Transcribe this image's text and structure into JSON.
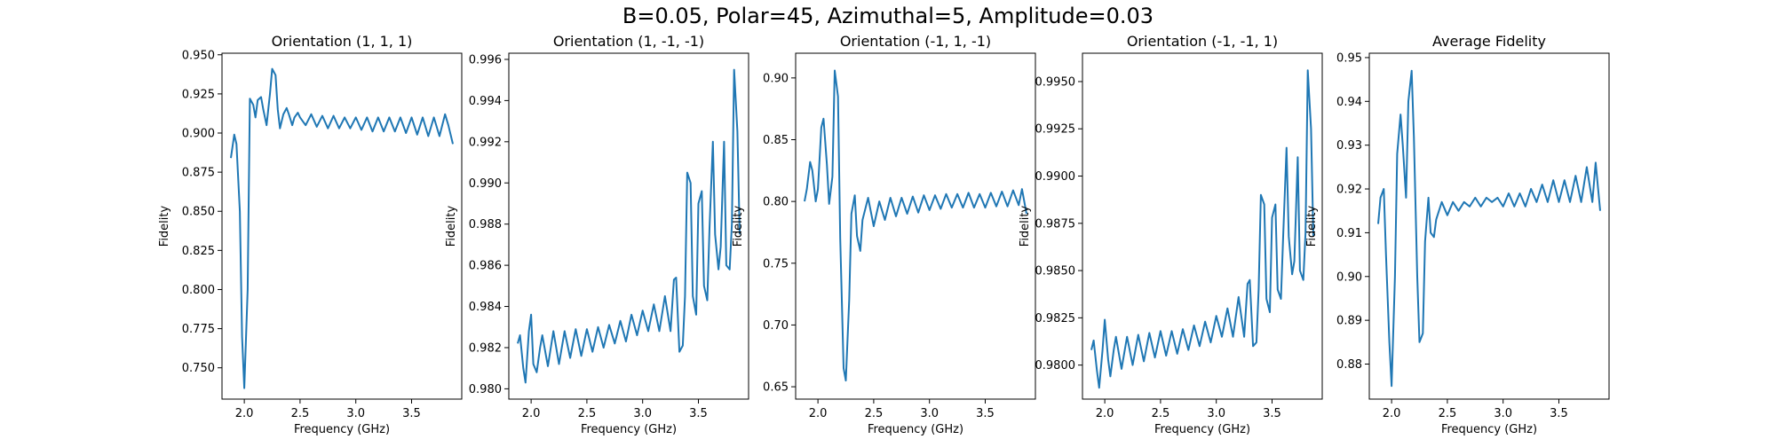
{
  "figure": {
    "suptitle": "B=0.05, Polar=45, Azimuthal=5, Amplitude=0.03"
  },
  "chart_data": [
    {
      "type": "line",
      "title": "Orientation (1, 1, 1)",
      "xlabel": "Frequency (GHz)",
      "ylabel": "Fidelity",
      "xlim": [
        1.8,
        3.95
      ],
      "ylim": [
        0.73,
        0.951
      ],
      "xticks": [
        2.0,
        2.5,
        3.0,
        3.5
      ],
      "xtick_labels": [
        "2.0",
        "2.5",
        "3.0",
        "3.5"
      ],
      "yticks": [
        0.75,
        0.775,
        0.8,
        0.825,
        0.85,
        0.875,
        0.9,
        0.925,
        0.95
      ],
      "ytick_labels": [
        "0.750",
        "0.775",
        "0.800",
        "0.825",
        "0.850",
        "0.875",
        "0.900",
        "0.925",
        "0.950"
      ],
      "series": [
        {
          "color": "#1f77b4",
          "x": [
            1.88,
            1.91,
            1.93,
            1.96,
            1.98,
            2.0,
            2.03,
            2.05,
            2.08,
            2.1,
            2.12,
            2.15,
            2.17,
            2.2,
            2.23,
            2.25,
            2.28,
            2.3,
            2.32,
            2.35,
            2.38,
            2.4,
            2.43,
            2.45,
            2.48,
            2.5,
            2.55,
            2.6,
            2.65,
            2.7,
            2.75,
            2.8,
            2.85,
            2.9,
            2.95,
            3.0,
            3.05,
            3.1,
            3.15,
            3.2,
            3.25,
            3.3,
            3.35,
            3.4,
            3.45,
            3.5,
            3.55,
            3.6,
            3.65,
            3.7,
            3.75,
            3.8,
            3.83,
            3.87
          ],
          "y": [
            0.884,
            0.899,
            0.893,
            0.85,
            0.77,
            0.737,
            0.8,
            0.922,
            0.918,
            0.91,
            0.921,
            0.923,
            0.915,
            0.905,
            0.925,
            0.941,
            0.937,
            0.915,
            0.903,
            0.912,
            0.916,
            0.912,
            0.905,
            0.91,
            0.913,
            0.91,
            0.905,
            0.912,
            0.904,
            0.911,
            0.903,
            0.911,
            0.903,
            0.91,
            0.903,
            0.91,
            0.902,
            0.91,
            0.901,
            0.91,
            0.901,
            0.91,
            0.901,
            0.91,
            0.9,
            0.91,
            0.899,
            0.91,
            0.898,
            0.91,
            0.898,
            0.912,
            0.905,
            0.893
          ]
        }
      ]
    },
    {
      "type": "line",
      "title": "Orientation (1, -1, -1)",
      "xlabel": "Frequency (GHz)",
      "ylabel": "Fidelity",
      "xlim": [
        1.8,
        3.95
      ],
      "ylim": [
        0.9795,
        0.9963
      ],
      "xticks": [
        2.0,
        2.5,
        3.0,
        3.5
      ],
      "xtick_labels": [
        "2.0",
        "2.5",
        "3.0",
        "3.5"
      ],
      "yticks": [
        0.98,
        0.982,
        0.984,
        0.986,
        0.988,
        0.99,
        0.992,
        0.994,
        0.996
      ],
      "ytick_labels": [
        "0.980",
        "0.982",
        "0.984",
        "0.986",
        "0.988",
        "0.990",
        "0.992",
        "0.994",
        "0.996"
      ],
      "series": [
        {
          "color": "#1f77b4",
          "x": [
            1.88,
            1.9,
            1.93,
            1.95,
            1.98,
            2.0,
            2.02,
            2.05,
            2.08,
            2.1,
            2.15,
            2.2,
            2.25,
            2.3,
            2.35,
            2.4,
            2.45,
            2.5,
            2.55,
            2.6,
            2.65,
            2.7,
            2.75,
            2.8,
            2.85,
            2.9,
            2.95,
            3.0,
            3.05,
            3.1,
            3.15,
            3.2,
            3.25,
            3.28,
            3.3,
            3.33,
            3.36,
            3.38,
            3.4,
            3.43,
            3.45,
            3.48,
            3.5,
            3.53,
            3.55,
            3.58,
            3.6,
            3.63,
            3.65,
            3.68,
            3.7,
            3.73,
            3.75,
            3.78,
            3.8,
            3.82,
            3.85,
            3.87
          ],
          "y": [
            0.9822,
            0.9826,
            0.981,
            0.9803,
            0.9828,
            0.9836,
            0.9812,
            0.9808,
            0.982,
            0.9826,
            0.9811,
            0.9828,
            0.9812,
            0.9828,
            0.9815,
            0.9829,
            0.9816,
            0.9829,
            0.9818,
            0.983,
            0.982,
            0.9831,
            0.9822,
            0.9833,
            0.9823,
            0.9836,
            0.9826,
            0.9838,
            0.9828,
            0.9841,
            0.9828,
            0.9845,
            0.9828,
            0.9853,
            0.9854,
            0.9818,
            0.9821,
            0.9845,
            0.9905,
            0.99,
            0.9845,
            0.9836,
            0.989,
            0.9896,
            0.985,
            0.9843,
            0.9878,
            0.992,
            0.9875,
            0.9858,
            0.9869,
            0.992,
            0.986,
            0.9858,
            0.988,
            0.9955,
            0.9925,
            0.9875
          ]
        }
      ]
    },
    {
      "type": "line",
      "title": "Orientation (-1, 1, -1)",
      "xlabel": "Frequency (GHz)",
      "ylabel": "Fidelity",
      "xlim": [
        1.8,
        3.95
      ],
      "ylim": [
        0.64,
        0.92
      ],
      "xticks": [
        2.0,
        2.5,
        3.0,
        3.5
      ],
      "xtick_labels": [
        "2.0",
        "2.5",
        "3.0",
        "3.5"
      ],
      "yticks": [
        0.65,
        0.7,
        0.75,
        0.8,
        0.85,
        0.9
      ],
      "ytick_labels": [
        "0.65",
        "0.70",
        "0.75",
        "0.80",
        "0.85",
        "0.90"
      ],
      "series": [
        {
          "color": "#1f77b4",
          "x": [
            1.88,
            1.9,
            1.93,
            1.95,
            1.98,
            2.0,
            2.03,
            2.05,
            2.08,
            2.1,
            2.13,
            2.15,
            2.18,
            2.2,
            2.23,
            2.25,
            2.28,
            2.3,
            2.33,
            2.35,
            2.38,
            2.4,
            2.45,
            2.5,
            2.55,
            2.6,
            2.65,
            2.7,
            2.75,
            2.8,
            2.85,
            2.9,
            2.95,
            3.0,
            3.05,
            3.1,
            3.15,
            3.2,
            3.25,
            3.3,
            3.35,
            3.4,
            3.45,
            3.5,
            3.55,
            3.6,
            3.65,
            3.7,
            3.75,
            3.8,
            3.83,
            3.87
          ],
          "y": [
            0.8,
            0.81,
            0.832,
            0.825,
            0.8,
            0.81,
            0.86,
            0.867,
            0.83,
            0.798,
            0.82,
            0.906,
            0.885,
            0.77,
            0.665,
            0.655,
            0.72,
            0.79,
            0.805,
            0.772,
            0.76,
            0.785,
            0.803,
            0.78,
            0.8,
            0.785,
            0.803,
            0.788,
            0.803,
            0.79,
            0.804,
            0.791,
            0.805,
            0.793,
            0.805,
            0.794,
            0.806,
            0.795,
            0.806,
            0.795,
            0.807,
            0.795,
            0.806,
            0.795,
            0.807,
            0.796,
            0.808,
            0.796,
            0.809,
            0.797,
            0.81,
            0.79
          ]
        }
      ]
    },
    {
      "type": "line",
      "title": "Orientation (-1, -1, 1)",
      "xlabel": "Frequency (GHz)",
      "ylabel": "Fidelity",
      "xlim": [
        1.8,
        3.95
      ],
      "ylim": [
        0.9782,
        0.9965
      ],
      "xticks": [
        2.0,
        2.5,
        3.0,
        3.5
      ],
      "xtick_labels": [
        "2.0",
        "2.5",
        "3.0",
        "3.5"
      ],
      "yticks": [
        0.98,
        0.9825,
        0.985,
        0.9875,
        0.99,
        0.9925,
        0.995
      ],
      "ytick_labels": [
        "0.9800",
        "0.9825",
        "0.9850",
        "0.9875",
        "0.9900",
        "0.9925",
        "0.9950"
      ],
      "series": [
        {
          "color": "#1f77b4",
          "x": [
            1.88,
            1.9,
            1.93,
            1.95,
            1.98,
            2.0,
            2.03,
            2.05,
            2.08,
            2.1,
            2.15,
            2.2,
            2.25,
            2.3,
            2.35,
            2.4,
            2.45,
            2.5,
            2.55,
            2.6,
            2.65,
            2.7,
            2.75,
            2.8,
            2.85,
            2.9,
            2.95,
            3.0,
            3.05,
            3.1,
            3.15,
            3.2,
            3.25,
            3.28,
            3.3,
            3.33,
            3.36,
            3.38,
            3.4,
            3.43,
            3.45,
            3.48,
            3.5,
            3.53,
            3.55,
            3.58,
            3.6,
            3.63,
            3.65,
            3.68,
            3.7,
            3.73,
            3.75,
            3.78,
            3.8,
            3.82,
            3.85,
            3.87
          ],
          "y": [
            0.9808,
            0.9813,
            0.9797,
            0.9788,
            0.9808,
            0.9824,
            0.9803,
            0.9794,
            0.9808,
            0.9815,
            0.9798,
            0.9815,
            0.98,
            0.9816,
            0.9802,
            0.9817,
            0.9804,
            0.9818,
            0.9805,
            0.9818,
            0.9806,
            0.9819,
            0.9808,
            0.9821,
            0.981,
            0.9823,
            0.9812,
            0.9826,
            0.9815,
            0.983,
            0.9815,
            0.9836,
            0.9815,
            0.9843,
            0.9845,
            0.981,
            0.9812,
            0.984,
            0.989,
            0.9885,
            0.9835,
            0.9828,
            0.9878,
            0.9885,
            0.984,
            0.9835,
            0.9868,
            0.9915,
            0.9868,
            0.9848,
            0.9855,
            0.991,
            0.985,
            0.9845,
            0.987,
            0.9956,
            0.9925,
            0.9868
          ]
        }
      ]
    },
    {
      "type": "line",
      "title": "Average Fidelity",
      "xlabel": "Frequency (GHz)",
      "ylabel": "Fidelity",
      "xlim": [
        1.8,
        3.95
      ],
      "ylim": [
        0.872,
        0.951
      ],
      "xticks": [
        2.0,
        2.5,
        3.0,
        3.5
      ],
      "xtick_labels": [
        "2.0",
        "2.5",
        "3.0",
        "3.5"
      ],
      "yticks": [
        0.88,
        0.89,
        0.9,
        0.91,
        0.92,
        0.93,
        0.94,
        0.95
      ],
      "ytick_labels": [
        "0.88",
        "0.89",
        "0.90",
        "0.91",
        "0.92",
        "0.93",
        "0.94",
        "0.95"
      ],
      "series": [
        {
          "color": "#1f77b4",
          "x": [
            1.88,
            1.9,
            1.93,
            1.95,
            1.98,
            2.0,
            2.03,
            2.05,
            2.08,
            2.1,
            2.13,
            2.15,
            2.18,
            2.2,
            2.23,
            2.25,
            2.28,
            2.3,
            2.33,
            2.35,
            2.38,
            2.4,
            2.45,
            2.5,
            2.55,
            2.6,
            2.65,
            2.7,
            2.75,
            2.8,
            2.85,
            2.9,
            2.95,
            3.0,
            3.05,
            3.1,
            3.15,
            3.2,
            3.25,
            3.3,
            3.35,
            3.4,
            3.45,
            3.5,
            3.55,
            3.6,
            3.65,
            3.7,
            3.75,
            3.8,
            3.83,
            3.87
          ],
          "y": [
            0.912,
            0.918,
            0.92,
            0.905,
            0.885,
            0.875,
            0.9,
            0.928,
            0.937,
            0.93,
            0.918,
            0.94,
            0.947,
            0.932,
            0.9,
            0.885,
            0.887,
            0.908,
            0.918,
            0.91,
            0.909,
            0.913,
            0.917,
            0.914,
            0.917,
            0.915,
            0.917,
            0.916,
            0.918,
            0.916,
            0.918,
            0.917,
            0.918,
            0.916,
            0.919,
            0.916,
            0.919,
            0.916,
            0.92,
            0.917,
            0.921,
            0.917,
            0.922,
            0.917,
            0.922,
            0.917,
            0.923,
            0.917,
            0.925,
            0.917,
            0.926,
            0.915
          ]
        }
      ]
    }
  ]
}
